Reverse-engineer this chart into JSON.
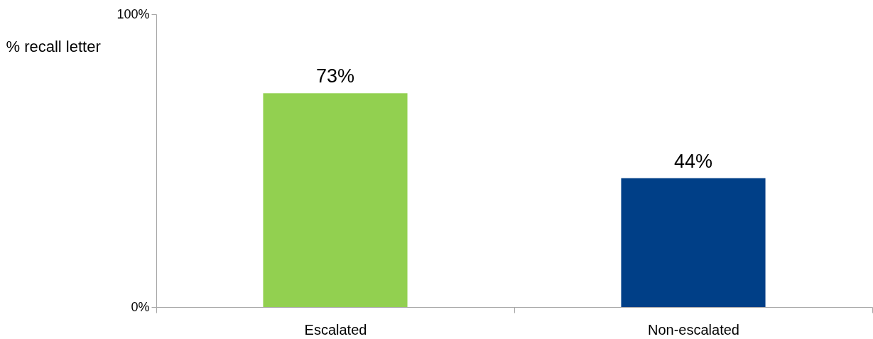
{
  "chart_data": {
    "type": "bar",
    "ylabel": "% recall letter",
    "categories": [
      "Escalated",
      "Non-escalated"
    ],
    "values": [
      73,
      44
    ],
    "colors": [
      "#92d050",
      "#003f87"
    ],
    "ylim": [
      0,
      100
    ],
    "yticks": [
      {
        "value": 0,
        "label": "0%"
      },
      {
        "value": 100,
        "label": "100%"
      }
    ],
    "value_labels": [
      "73%",
      "44%"
    ],
    "grid": false
  }
}
